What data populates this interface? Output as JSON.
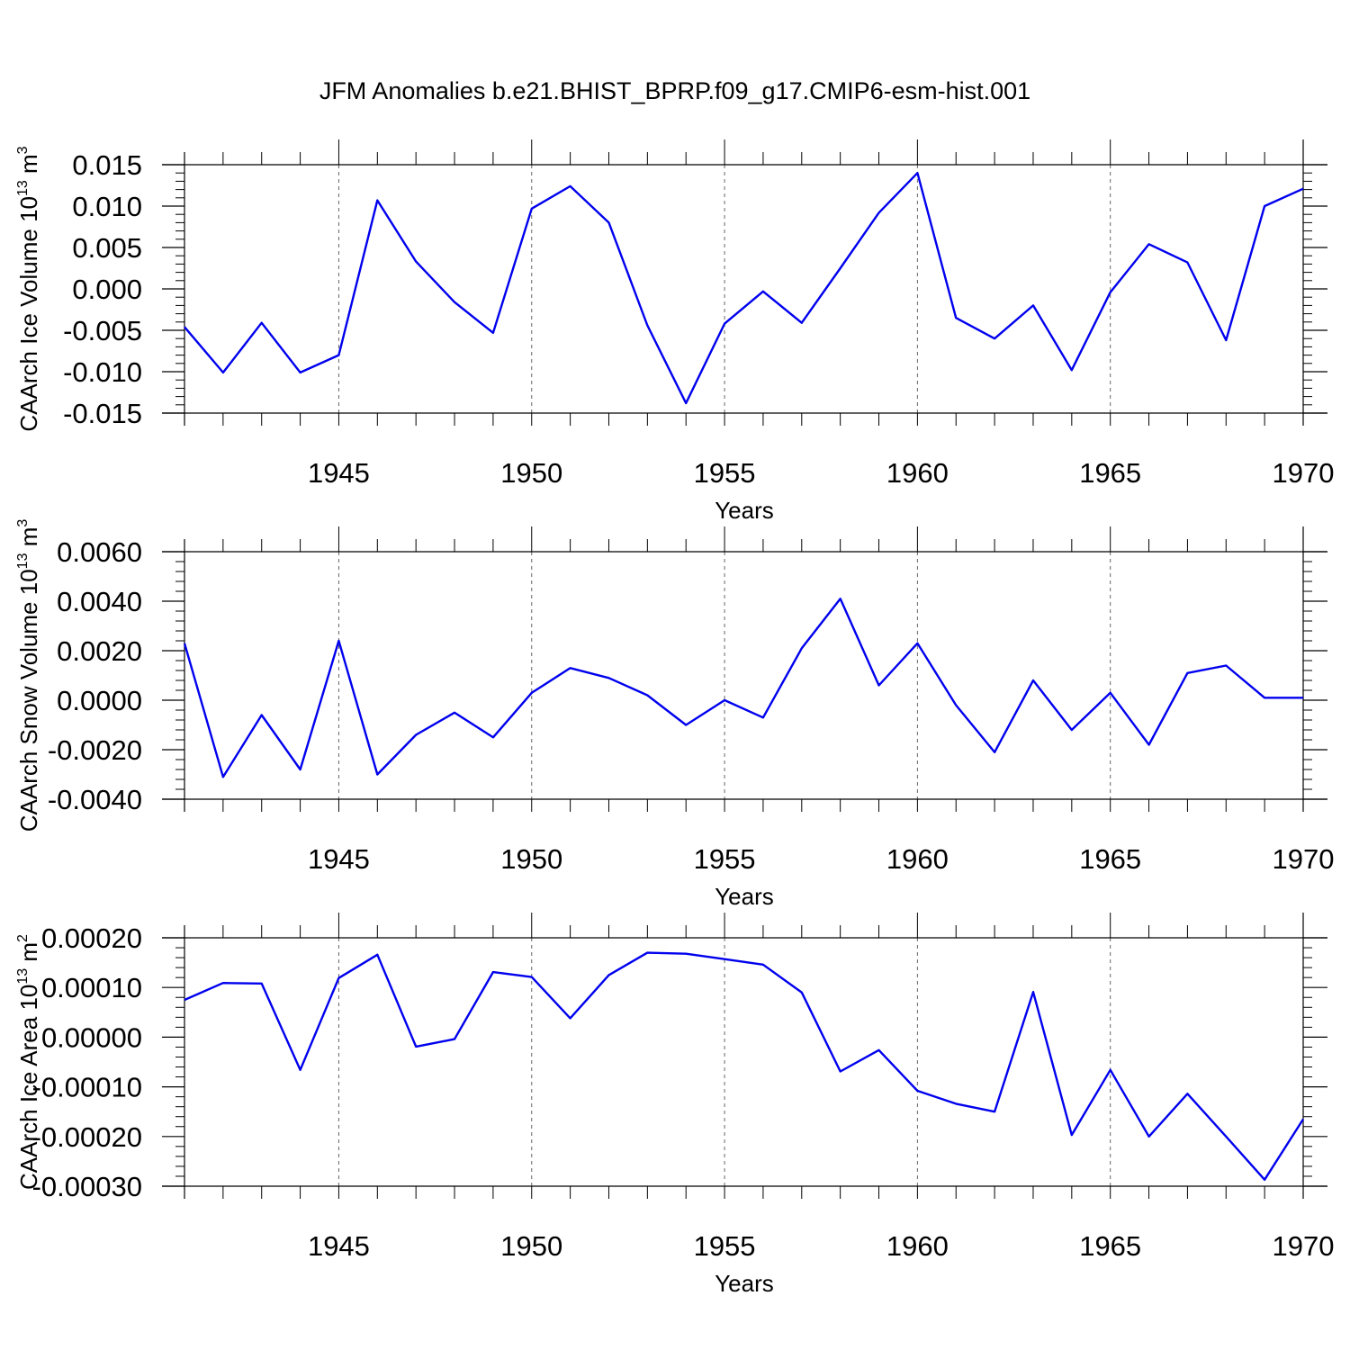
{
  "title": "JFM Anomalies b.e21.BHIST_BPRP.f09_g17.CMIP6-esm-hist.001",
  "line_color": "#0000ee",
  "chart_data": [
    {
      "type": "line",
      "title": "JFM Anomalies b.e21.BHIST_BPRP.f09_g17.CMIP6-esm-hist.001",
      "xlabel": "Years",
      "ylabel": "CAArch Ice Volume 10^13 m^3",
      "ylabel_base": "CAArch Ice Volume 10",
      "ylabel_exp": "13",
      "ylabel_unit": " m",
      "ylabel_unit_exp": "3",
      "xlim": [
        1941,
        1970
      ],
      "ylim": [
        -0.015,
        0.015
      ],
      "grid": "x-dashed",
      "xticks": [
        1945,
        1950,
        1955,
        1960,
        1965,
        1970
      ],
      "xtick_labels": [
        "1945",
        "1950",
        "1955",
        "1960",
        "1965",
        "1970"
      ],
      "yticks": [
        -0.015,
        -0.01,
        -0.005,
        0.0,
        0.005,
        0.01,
        0.015
      ],
      "ytick_labels": [
        "-0.015",
        "-0.010",
        "-0.005",
        "0.000",
        "0.005",
        "0.010",
        "0.015"
      ],
      "x": [
        1941,
        1942,
        1943,
        1944,
        1945,
        1946,
        1947,
        1948,
        1949,
        1950,
        1951,
        1952,
        1953,
        1954,
        1955,
        1956,
        1957,
        1958,
        1959,
        1960,
        1961,
        1962,
        1963,
        1964,
        1965,
        1966,
        1967,
        1968,
        1969,
        1970
      ],
      "series": [
        {
          "values": [
            -0.0046,
            -0.0101,
            -0.0041,
            -0.0101,
            -0.008,
            0.0107,
            0.0033,
            -0.0016,
            -0.0053,
            0.0097,
            0.0124,
            0.008,
            -0.0044,
            -0.0138,
            -0.0042,
            -0.0003,
            -0.0041,
            0.0025,
            0.0092,
            0.014,
            -0.0035,
            -0.006,
            -0.002,
            -0.0098,
            -0.0004,
            0.0054,
            0.0032,
            -0.0062,
            0.01,
            0.0121
          ]
        }
      ]
    },
    {
      "type": "line",
      "xlabel": "Years",
      "ylabel": "CAArch Snow Volume 10^13 m^3",
      "ylabel_base": "CAArch Snow Volume 10",
      "ylabel_exp": "13",
      "ylabel_unit": " m",
      "ylabel_unit_exp": "3",
      "xlim": [
        1941,
        1970
      ],
      "ylim": [
        -0.004,
        0.006
      ],
      "grid": "x-dashed",
      "xticks": [
        1945,
        1950,
        1955,
        1960,
        1965,
        1970
      ],
      "xtick_labels": [
        "1945",
        "1950",
        "1955",
        "1960",
        "1965",
        "1970"
      ],
      "yticks": [
        -0.004,
        -0.002,
        0.0,
        0.002,
        0.004,
        0.006
      ],
      "ytick_labels": [
        "-0.0040",
        "-0.0020",
        "0.0000",
        "0.0020",
        "0.0040",
        "0.0060"
      ],
      "x": [
        1941,
        1942,
        1943,
        1944,
        1945,
        1946,
        1947,
        1948,
        1949,
        1950,
        1951,
        1952,
        1953,
        1954,
        1955,
        1956,
        1957,
        1958,
        1959,
        1960,
        1961,
        1962,
        1963,
        1964,
        1965,
        1966,
        1967,
        1968,
        1969,
        1970
      ],
      "series": [
        {
          "values": [
            0.0023,
            -0.0031,
            -0.0006,
            -0.0028,
            0.0024,
            -0.003,
            -0.0014,
            -0.0005,
            -0.0015,
            0.0003,
            0.0013,
            0.0009,
            0.0002,
            -0.001,
            0.0,
            -0.0007,
            0.0021,
            0.0041,
            0.0006,
            0.0023,
            -0.0002,
            -0.0021,
            0.0008,
            -0.0012,
            0.0003,
            -0.0018,
            0.0011,
            0.0014,
            0.0001,
            0.0001
          ]
        }
      ]
    },
    {
      "type": "line",
      "xlabel": "Years",
      "ylabel": "CAArch Ice Area 10^13 m^2",
      "ylabel_base": "CAArch Ice Area 10",
      "ylabel_exp": "13",
      "ylabel_unit": " m",
      "ylabel_unit_exp": "2",
      "xlim": [
        1941,
        1970
      ],
      "ylim": [
        -0.0003,
        0.0002
      ],
      "grid": "x-dashed",
      "xticks": [
        1945,
        1950,
        1955,
        1960,
        1965,
        1970
      ],
      "xtick_labels": [
        "1945",
        "1950",
        "1955",
        "1960",
        "1965",
        "1970"
      ],
      "yticks": [
        -0.0003,
        -0.0002,
        -0.0001,
        0.0,
        0.0001,
        0.0002
      ],
      "ytick_labels": [
        "-0.00030",
        "-0.00020",
        "-0.00010",
        "0.00000",
        "0.00010",
        "0.00020"
      ],
      "x": [
        1941,
        1942,
        1943,
        1944,
        1945,
        1946,
        1947,
        1948,
        1949,
        1950,
        1951,
        1952,
        1953,
        1954,
        1955,
        1956,
        1957,
        1958,
        1959,
        1960,
        1961,
        1962,
        1963,
        1964,
        1965,
        1966,
        1967,
        1968,
        1969,
        1970
      ],
      "series": [
        {
          "values": [
            7.5e-05,
            0.000109,
            0.000108,
            -6.6e-05,
            0.000119,
            0.000166,
            -1.9e-05,
            -4e-06,
            0.000131,
            0.000121,
            3.8e-05,
            0.000125,
            0.00017,
            0.000168,
            0.000157,
            0.000146,
            9e-05,
            -6.9e-05,
            -2.6e-05,
            -0.000108,
            -0.000134,
            -0.00015,
            9.1e-05,
            -0.000197,
            -6.6e-05,
            -0.0002,
            -0.000114,
            -0.0002,
            -0.000287,
            -0.000165
          ]
        }
      ]
    }
  ]
}
